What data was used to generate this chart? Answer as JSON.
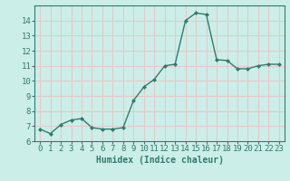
{
  "x": [
    0,
    1,
    2,
    3,
    4,
    5,
    6,
    7,
    8,
    9,
    10,
    11,
    12,
    13,
    14,
    15,
    16,
    17,
    18,
    19,
    20,
    21,
    22,
    23
  ],
  "y": [
    6.8,
    6.5,
    7.1,
    7.4,
    7.5,
    6.9,
    6.8,
    6.8,
    6.9,
    8.7,
    9.6,
    10.1,
    11.0,
    11.1,
    14.0,
    14.5,
    14.4,
    11.4,
    11.35,
    10.8,
    10.8,
    11.0,
    11.1,
    11.1
  ],
  "line_color": "#2e7d6e",
  "marker": "D",
  "marker_size": 2.0,
  "bg_color": "#cceee8",
  "grid_color": "#e8c8c8",
  "xlabel": "Humidex (Indice chaleur)",
  "ylim": [
    6,
    15
  ],
  "xlim": [
    -0.5,
    23.5
  ],
  "yticks": [
    6,
    7,
    8,
    9,
    10,
    11,
    12,
    13,
    14
  ],
  "xticks": [
    0,
    1,
    2,
    3,
    4,
    5,
    6,
    7,
    8,
    9,
    10,
    11,
    12,
    13,
    14,
    15,
    16,
    17,
    18,
    19,
    20,
    21,
    22,
    23
  ],
  "xlabel_fontsize": 7,
  "tick_fontsize": 6.5,
  "spine_color": "#2e7d6e",
  "linewidth": 1.0
}
